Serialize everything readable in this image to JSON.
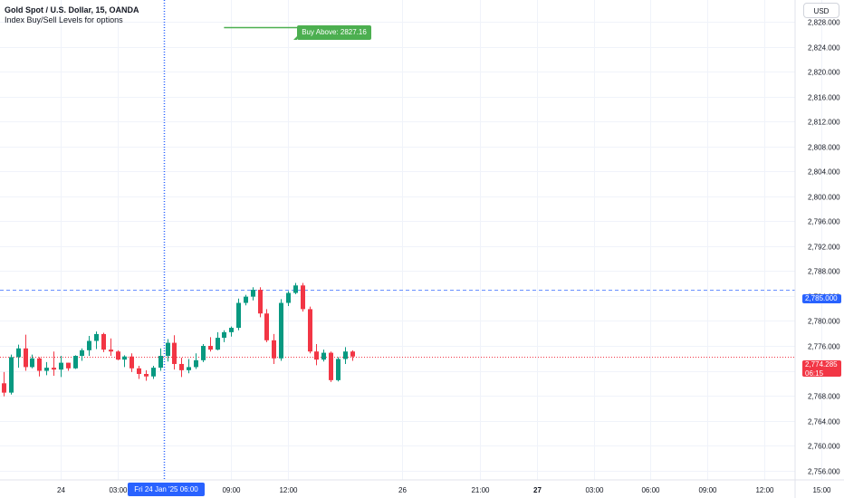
{
  "header": {
    "symbol_title": "Gold Spot / U.S. Dollar, 15, OANDA",
    "indicator_title": "Index Buy/Sell Levels for options",
    "currency": "USD"
  },
  "chart_data": {
    "type": "candlestick",
    "title": "Gold Spot / U.S. Dollar, 15, OANDA",
    "ylim": [
      2754.5,
      2831.5
    ],
    "y_ticks": [
      {
        "value": 2828,
        "label": "2,828.000"
      },
      {
        "value": 2824,
        "label": "2,824.000"
      },
      {
        "value": 2820,
        "label": "2,820.000"
      },
      {
        "value": 2816,
        "label": "2,816.000"
      },
      {
        "value": 2812,
        "label": "2,812.000"
      },
      {
        "value": 2808,
        "label": "2,808.000"
      },
      {
        "value": 2804,
        "label": "2,804.000"
      },
      {
        "value": 2800,
        "label": "2,800.000"
      },
      {
        "value": 2796,
        "label": "2,796.000"
      },
      {
        "value": 2792,
        "label": "2,792.000"
      },
      {
        "value": 2788,
        "label": "2,788.000"
      },
      {
        "value": 2784,
        "label": "2,784.000"
      },
      {
        "value": 2780,
        "label": "2,780.000"
      },
      {
        "value": 2776,
        "label": "2,776.000"
      },
      {
        "value": 2772,
        "label": "2,772.000"
      },
      {
        "value": 2768,
        "label": "2,768.000"
      },
      {
        "value": 2764,
        "label": "2,764.000"
      },
      {
        "value": 2760,
        "label": "2,760.000"
      },
      {
        "value": 2756,
        "label": "2,756.000"
      }
    ],
    "x_ticks": [
      {
        "bar": 8,
        "label": "24",
        "bold": false
      },
      {
        "bar": 16,
        "label": "03:00",
        "bold": false
      },
      {
        "bar": 32,
        "label": "09:00",
        "bold": false
      },
      {
        "bar": 40,
        "label": "12:00",
        "bold": false
      },
      {
        "bar": 56,
        "label": "26",
        "bold": false
      },
      {
        "bar": 67,
        "label": "21:00",
        "bold": false
      },
      {
        "bar": 75,
        "label": "27",
        "bold": true
      },
      {
        "bar": 83,
        "label": "03:00",
        "bold": false
      },
      {
        "bar": 91,
        "label": "06:00",
        "bold": false
      },
      {
        "bar": 99,
        "label": "09:00",
        "bold": false
      },
      {
        "bar": 107,
        "label": "12:00",
        "bold": false
      },
      {
        "bar": 115,
        "label": "15:00",
        "bold": false
      }
    ],
    "candles": [
      {
        "o": 2770.0,
        "h": 2771.8,
        "l": 2767.9,
        "c": 2768.5
      },
      {
        "o": 2768.5,
        "h": 2774.6,
        "l": 2768.2,
        "c": 2774.2
      },
      {
        "o": 2774.2,
        "h": 2776.2,
        "l": 2772.5,
        "c": 2775.6
      },
      {
        "o": 2775.6,
        "h": 2777.8,
        "l": 2772.0,
        "c": 2772.6
      },
      {
        "o": 2772.6,
        "h": 2774.6,
        "l": 2772.4,
        "c": 2774.0
      },
      {
        "o": 2774.0,
        "h": 2774.2,
        "l": 2771.1,
        "c": 2772.0
      },
      {
        "o": 2772.0,
        "h": 2773.4,
        "l": 2771.3,
        "c": 2772.5
      },
      {
        "o": 2772.5,
        "h": 2775.1,
        "l": 2771.2,
        "c": 2772.2
      },
      {
        "o": 2772.2,
        "h": 2774.4,
        "l": 2771.0,
        "c": 2773.3
      },
      {
        "o": 2773.3,
        "h": 2773.3,
        "l": 2772.0,
        "c": 2772.4
      },
      {
        "o": 2772.4,
        "h": 2774.5,
        "l": 2772.3,
        "c": 2774.4
      },
      {
        "o": 2774.4,
        "h": 2775.6,
        "l": 2773.6,
        "c": 2775.3
      },
      {
        "o": 2775.3,
        "h": 2777.6,
        "l": 2774.4,
        "c": 2776.8
      },
      {
        "o": 2776.8,
        "h": 2778.3,
        "l": 2775.5,
        "c": 2777.9
      },
      {
        "o": 2777.9,
        "h": 2778.1,
        "l": 2775.0,
        "c": 2775.4
      },
      {
        "o": 2775.4,
        "h": 2777.2,
        "l": 2774.4,
        "c": 2775.1
      },
      {
        "o": 2775.1,
        "h": 2775.3,
        "l": 2773.7,
        "c": 2773.8
      },
      {
        "o": 2773.8,
        "h": 2774.5,
        "l": 2772.6,
        "c": 2774.3
      },
      {
        "o": 2774.3,
        "h": 2774.8,
        "l": 2771.8,
        "c": 2772.4
      },
      {
        "o": 2772.4,
        "h": 2772.8,
        "l": 2770.7,
        "c": 2771.5
      },
      {
        "o": 2771.5,
        "h": 2772.1,
        "l": 2770.4,
        "c": 2771.1
      },
      {
        "o": 2771.1,
        "h": 2772.8,
        "l": 2770.7,
        "c": 2772.5
      },
      {
        "o": 2772.5,
        "h": 2775.6,
        "l": 2772.0,
        "c": 2774.4
      },
      {
        "o": 2774.4,
        "h": 2777.1,
        "l": 2773.5,
        "c": 2776.5
      },
      {
        "o": 2776.5,
        "h": 2777.7,
        "l": 2772.2,
        "c": 2773.1
      },
      {
        "o": 2773.1,
        "h": 2774.1,
        "l": 2771.0,
        "c": 2772.1
      },
      {
        "o": 2772.1,
        "h": 2773.9,
        "l": 2771.6,
        "c": 2772.6
      },
      {
        "o": 2772.6,
        "h": 2774.8,
        "l": 2772.3,
        "c": 2773.7
      },
      {
        "o": 2773.7,
        "h": 2776.3,
        "l": 2773.4,
        "c": 2776.0
      },
      {
        "o": 2776.0,
        "h": 2777.4,
        "l": 2775.1,
        "c": 2775.4
      },
      {
        "o": 2775.4,
        "h": 2778.2,
        "l": 2775.3,
        "c": 2777.3
      },
      {
        "o": 2777.3,
        "h": 2778.5,
        "l": 2776.6,
        "c": 2778.2
      },
      {
        "o": 2778.2,
        "h": 2779.1,
        "l": 2777.5,
        "c": 2778.9
      },
      {
        "o": 2778.9,
        "h": 2783.6,
        "l": 2778.5,
        "c": 2782.9
      },
      {
        "o": 2782.9,
        "h": 2784.2,
        "l": 2782.5,
        "c": 2783.9
      },
      {
        "o": 2783.9,
        "h": 2785.4,
        "l": 2783.3,
        "c": 2785.0
      },
      {
        "o": 2785.0,
        "h": 2785.4,
        "l": 2780.6,
        "c": 2781.2
      },
      {
        "o": 2781.2,
        "h": 2781.9,
        "l": 2776.6,
        "c": 2776.9
      },
      {
        "o": 2776.9,
        "h": 2777.9,
        "l": 2773.1,
        "c": 2774.0
      },
      {
        "o": 2774.0,
        "h": 2783.5,
        "l": 2773.6,
        "c": 2782.9
      },
      {
        "o": 2782.9,
        "h": 2784.8,
        "l": 2782.4,
        "c": 2784.5
      },
      {
        "o": 2784.5,
        "h": 2786.1,
        "l": 2784.3,
        "c": 2785.7
      },
      {
        "o": 2785.7,
        "h": 2786.1,
        "l": 2781.5,
        "c": 2781.9
      },
      {
        "o": 2781.9,
        "h": 2782.3,
        "l": 2774.8,
        "c": 2775.1
      },
      {
        "o": 2775.1,
        "h": 2776.3,
        "l": 2772.9,
        "c": 2773.8
      },
      {
        "o": 2773.8,
        "h": 2775.4,
        "l": 2773.5,
        "c": 2774.9
      },
      {
        "o": 2774.9,
        "h": 2775.1,
        "l": 2770.2,
        "c": 2770.5
      },
      {
        "o": 2770.5,
        "h": 2774.2,
        "l": 2770.3,
        "c": 2773.9
      },
      {
        "o": 2773.9,
        "h": 2775.8,
        "l": 2773.1,
        "c": 2775.1
      },
      {
        "o": 2775.1,
        "h": 2775.3,
        "l": 2773.6,
        "c": 2774.3
      }
    ],
    "buy_level": {
      "price": 2827.16,
      "label": "Buy Above: 2827.16",
      "start_bar": 31,
      "end_bar": 47
    },
    "dashed_level": {
      "price": 2785.0,
      "label": "2,785.000"
    },
    "current_price": {
      "price": 2774.285,
      "label": "2,774.285",
      "countdown": "06:15"
    },
    "crosshair": {
      "bar": 22.5,
      "date_label": "Fri 24 Jan '25   06:00"
    },
    "colors": {
      "up": "#089981",
      "down": "#f23645",
      "buy": "#4caf50",
      "crosshair": "#2962ff",
      "grid": "#f0f3fa",
      "text": "#131722"
    }
  },
  "colors": {
    "background": "#ffffff",
    "accent": "#2962ff"
  }
}
